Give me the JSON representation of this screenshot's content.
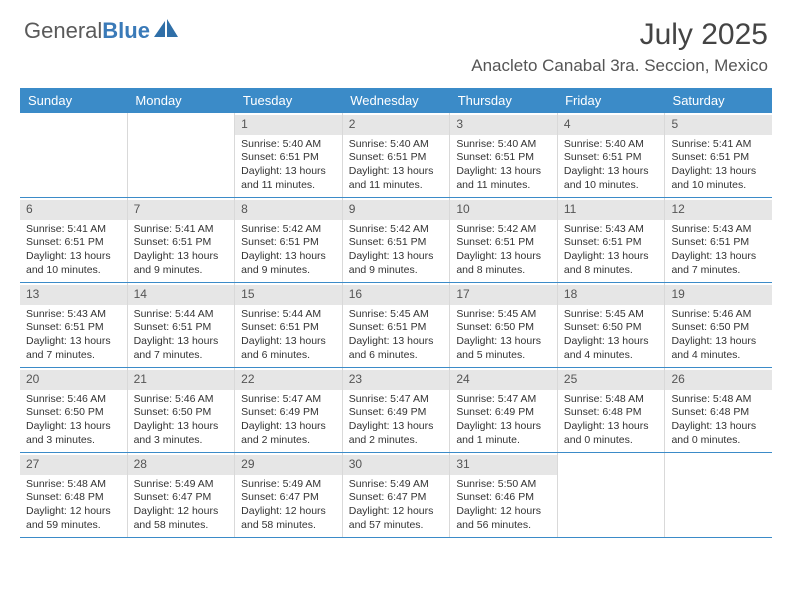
{
  "brand": {
    "part1": "General",
    "part2": "Blue"
  },
  "title": "July 2025",
  "location": "Anacleto Canabal 3ra. Seccion, Mexico",
  "colors": {
    "headerBlue": "#3b8bc8",
    "dayHeaderGray": "#e6e6e6",
    "ruleBlue": "#3b8bc8",
    "text": "#333333",
    "logoGray": "#5a5a5a",
    "logoBlue": "#3a7ab8"
  },
  "weekdays": [
    "Sunday",
    "Monday",
    "Tuesday",
    "Wednesday",
    "Thursday",
    "Friday",
    "Saturday"
  ],
  "weeks": [
    [
      {
        "n": "",
        "lines": []
      },
      {
        "n": "",
        "lines": []
      },
      {
        "n": "1",
        "lines": [
          "Sunrise: 5:40 AM",
          "Sunset: 6:51 PM",
          "Daylight: 13 hours",
          "and 11 minutes."
        ]
      },
      {
        "n": "2",
        "lines": [
          "Sunrise: 5:40 AM",
          "Sunset: 6:51 PM",
          "Daylight: 13 hours",
          "and 11 minutes."
        ]
      },
      {
        "n": "3",
        "lines": [
          "Sunrise: 5:40 AM",
          "Sunset: 6:51 PM",
          "Daylight: 13 hours",
          "and 11 minutes."
        ]
      },
      {
        "n": "4",
        "lines": [
          "Sunrise: 5:40 AM",
          "Sunset: 6:51 PM",
          "Daylight: 13 hours",
          "and 10 minutes."
        ]
      },
      {
        "n": "5",
        "lines": [
          "Sunrise: 5:41 AM",
          "Sunset: 6:51 PM",
          "Daylight: 13 hours",
          "and 10 minutes."
        ]
      }
    ],
    [
      {
        "n": "6",
        "lines": [
          "Sunrise: 5:41 AM",
          "Sunset: 6:51 PM",
          "Daylight: 13 hours",
          "and 10 minutes."
        ]
      },
      {
        "n": "7",
        "lines": [
          "Sunrise: 5:41 AM",
          "Sunset: 6:51 PM",
          "Daylight: 13 hours",
          "and 9 minutes."
        ]
      },
      {
        "n": "8",
        "lines": [
          "Sunrise: 5:42 AM",
          "Sunset: 6:51 PM",
          "Daylight: 13 hours",
          "and 9 minutes."
        ]
      },
      {
        "n": "9",
        "lines": [
          "Sunrise: 5:42 AM",
          "Sunset: 6:51 PM",
          "Daylight: 13 hours",
          "and 9 minutes."
        ]
      },
      {
        "n": "10",
        "lines": [
          "Sunrise: 5:42 AM",
          "Sunset: 6:51 PM",
          "Daylight: 13 hours",
          "and 8 minutes."
        ]
      },
      {
        "n": "11",
        "lines": [
          "Sunrise: 5:43 AM",
          "Sunset: 6:51 PM",
          "Daylight: 13 hours",
          "and 8 minutes."
        ]
      },
      {
        "n": "12",
        "lines": [
          "Sunrise: 5:43 AM",
          "Sunset: 6:51 PM",
          "Daylight: 13 hours",
          "and 7 minutes."
        ]
      }
    ],
    [
      {
        "n": "13",
        "lines": [
          "Sunrise: 5:43 AM",
          "Sunset: 6:51 PM",
          "Daylight: 13 hours",
          "and 7 minutes."
        ]
      },
      {
        "n": "14",
        "lines": [
          "Sunrise: 5:44 AM",
          "Sunset: 6:51 PM",
          "Daylight: 13 hours",
          "and 7 minutes."
        ]
      },
      {
        "n": "15",
        "lines": [
          "Sunrise: 5:44 AM",
          "Sunset: 6:51 PM",
          "Daylight: 13 hours",
          "and 6 minutes."
        ]
      },
      {
        "n": "16",
        "lines": [
          "Sunrise: 5:45 AM",
          "Sunset: 6:51 PM",
          "Daylight: 13 hours",
          "and 6 minutes."
        ]
      },
      {
        "n": "17",
        "lines": [
          "Sunrise: 5:45 AM",
          "Sunset: 6:50 PM",
          "Daylight: 13 hours",
          "and 5 minutes."
        ]
      },
      {
        "n": "18",
        "lines": [
          "Sunrise: 5:45 AM",
          "Sunset: 6:50 PM",
          "Daylight: 13 hours",
          "and 4 minutes."
        ]
      },
      {
        "n": "19",
        "lines": [
          "Sunrise: 5:46 AM",
          "Sunset: 6:50 PM",
          "Daylight: 13 hours",
          "and 4 minutes."
        ]
      }
    ],
    [
      {
        "n": "20",
        "lines": [
          "Sunrise: 5:46 AM",
          "Sunset: 6:50 PM",
          "Daylight: 13 hours",
          "and 3 minutes."
        ]
      },
      {
        "n": "21",
        "lines": [
          "Sunrise: 5:46 AM",
          "Sunset: 6:50 PM",
          "Daylight: 13 hours",
          "and 3 minutes."
        ]
      },
      {
        "n": "22",
        "lines": [
          "Sunrise: 5:47 AM",
          "Sunset: 6:49 PM",
          "Daylight: 13 hours",
          "and 2 minutes."
        ]
      },
      {
        "n": "23",
        "lines": [
          "Sunrise: 5:47 AM",
          "Sunset: 6:49 PM",
          "Daylight: 13 hours",
          "and 2 minutes."
        ]
      },
      {
        "n": "24",
        "lines": [
          "Sunrise: 5:47 AM",
          "Sunset: 6:49 PM",
          "Daylight: 13 hours",
          "and 1 minute."
        ]
      },
      {
        "n": "25",
        "lines": [
          "Sunrise: 5:48 AM",
          "Sunset: 6:48 PM",
          "Daylight: 13 hours",
          "and 0 minutes."
        ]
      },
      {
        "n": "26",
        "lines": [
          "Sunrise: 5:48 AM",
          "Sunset: 6:48 PM",
          "Daylight: 13 hours",
          "and 0 minutes."
        ]
      }
    ],
    [
      {
        "n": "27",
        "lines": [
          "Sunrise: 5:48 AM",
          "Sunset: 6:48 PM",
          "Daylight: 12 hours",
          "and 59 minutes."
        ]
      },
      {
        "n": "28",
        "lines": [
          "Sunrise: 5:49 AM",
          "Sunset: 6:47 PM",
          "Daylight: 12 hours",
          "and 58 minutes."
        ]
      },
      {
        "n": "29",
        "lines": [
          "Sunrise: 5:49 AM",
          "Sunset: 6:47 PM",
          "Daylight: 12 hours",
          "and 58 minutes."
        ]
      },
      {
        "n": "30",
        "lines": [
          "Sunrise: 5:49 AM",
          "Sunset: 6:47 PM",
          "Daylight: 12 hours",
          "and 57 minutes."
        ]
      },
      {
        "n": "31",
        "lines": [
          "Sunrise: 5:50 AM",
          "Sunset: 6:46 PM",
          "Daylight: 12 hours",
          "and 56 minutes."
        ]
      },
      {
        "n": "",
        "lines": []
      },
      {
        "n": "",
        "lines": []
      }
    ]
  ]
}
